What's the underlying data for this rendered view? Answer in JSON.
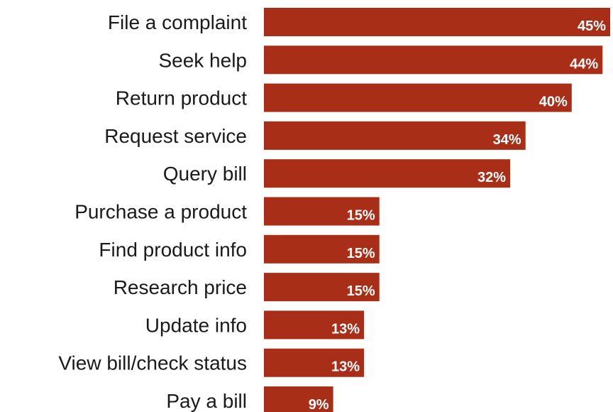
{
  "colors": {
    "bar": "#a92e18",
    "value_text": "#ffffff",
    "label_text": "#1a1a1a",
    "background": "#ffffff"
  },
  "chart_data": {
    "type": "bar",
    "orientation": "horizontal",
    "title": "",
    "xlabel": "",
    "ylabel": "",
    "grid": false,
    "legend": "none",
    "xlim": [
      0,
      45
    ],
    "categories": [
      "File a complaint",
      "Seek help",
      "Return product",
      "Request service",
      "Query bill",
      "Purchase a product",
      "Find product info",
      "Research price",
      "Update info",
      "View bill/check status",
      "Pay a bill"
    ],
    "values": [
      45,
      44,
      40,
      34,
      32,
      15,
      15,
      15,
      13,
      13,
      9
    ],
    "value_labels": [
      "45%",
      "44%",
      "40%",
      "34%",
      "32%",
      "15%",
      "15%",
      "15%",
      "13%",
      "13%",
      "9%"
    ]
  }
}
